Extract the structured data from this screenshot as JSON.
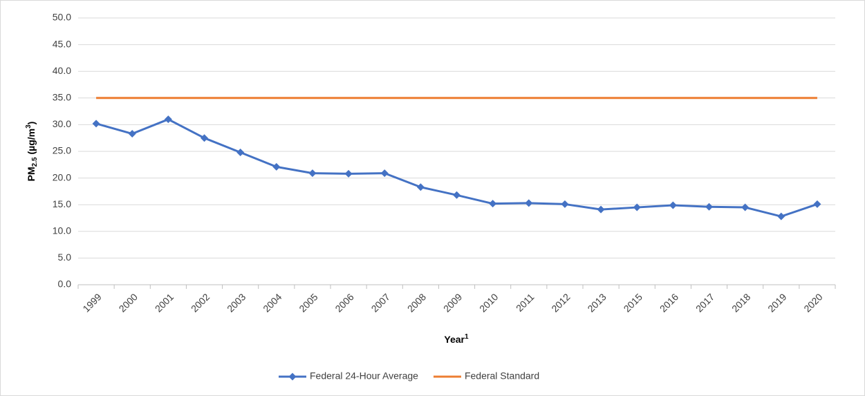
{
  "chart_data": {
    "type": "line",
    "y_label": [
      "PM",
      "2.5",
      " (µg/m",
      "3",
      ")"
    ],
    "x_label": [
      "Year",
      "1"
    ],
    "categories": [
      "1999",
      "2000",
      "2001",
      "2002",
      "2003",
      "2004",
      "2005",
      "2006",
      "2007",
      "2008",
      "2009",
      "2010",
      "2011",
      "2012",
      "2013",
      "2015",
      "2016",
      "2017",
      "2018",
      "2019",
      "2020"
    ],
    "series": [
      {
        "name": "Federal 24-Hour Average",
        "color": "#4472c4",
        "marker": "diamond",
        "values": [
          30.2,
          28.3,
          31.0,
          27.5,
          24.8,
          22.1,
          20.9,
          20.8,
          20.9,
          18.3,
          16.8,
          15.2,
          15.3,
          15.1,
          14.1,
          14.5,
          14.9,
          14.6,
          14.5,
          12.8,
          15.1
        ]
      },
      {
        "name": "Federal Standard",
        "color": "#ed7d31",
        "values": [
          35,
          35,
          35,
          35,
          35,
          35,
          35,
          35,
          35,
          35,
          35,
          35,
          35,
          35,
          35,
          35,
          35,
          35,
          35,
          35,
          35
        ]
      }
    ],
    "ylim": [
      0,
      50
    ],
    "yticks": [
      {
        "value": 0,
        "label": "0.0"
      },
      {
        "value": 5,
        "label": "5.0"
      },
      {
        "value": 10,
        "label": "10.0"
      },
      {
        "value": 15,
        "label": "15.0"
      },
      {
        "value": 20,
        "label": "20.0"
      },
      {
        "value": 25,
        "label": "25.0"
      },
      {
        "value": 30,
        "label": "30.0"
      },
      {
        "value": 35,
        "label": "35.0"
      },
      {
        "value": 40,
        "label": "40.0"
      },
      {
        "value": 45,
        "label": "45.0"
      },
      {
        "value": 50,
        "label": "50.0"
      }
    ],
    "grid": true,
    "legend": "bottom"
  }
}
